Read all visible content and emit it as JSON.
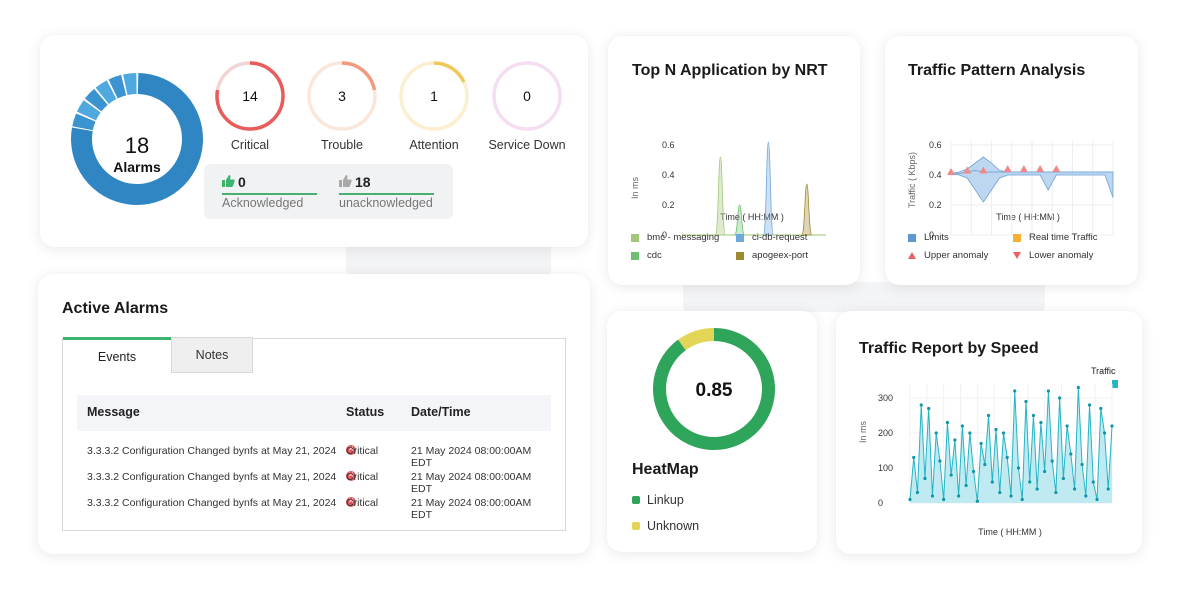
{
  "summary": {
    "total_count": "18",
    "total_label": "Alarms",
    "rings": [
      {
        "label": "Critical",
        "count": "14",
        "color": "#e85c5c",
        "track": "#f3d4d4"
      },
      {
        "label": "Trouble",
        "count": "3",
        "color": "#f29a7e",
        "track": "#fbe6dc"
      },
      {
        "label": "Attention",
        "count": "1",
        "color": "#f0c85a",
        "track": "#fbefcf"
      },
      {
        "label": "Service Down",
        "count": "0",
        "color": "#e9c6e6",
        "track": "#f3dff1"
      }
    ],
    "acknowledged": {
      "count": "0",
      "label": "Acknowledged"
    },
    "unacknowledged": {
      "count": "18",
      "label": "unacknowledged"
    },
    "colors": {
      "donut_dark": "#2f86c2",
      "donut_light": "#4fa9e0",
      "ack_bar": "#4caf72"
    }
  },
  "active_alarms": {
    "title": "Active Alarms",
    "tabs": [
      {
        "label": "Events",
        "active": true
      },
      {
        "label": "Notes",
        "active": false
      }
    ],
    "columns": [
      "Message",
      "Status",
      "Date/Time"
    ],
    "rows": [
      {
        "message": "3.3.3.2 Configuration Changed bynfs at  May 21, 2024",
        "status": "Critical",
        "datetime": "21 May 2024 08:00:00AM EDT"
      },
      {
        "message": "3.3.3.2 Configuration Changed bynfs at  May 21, 2024",
        "status": "Critical",
        "datetime": "21 May 2024 08:00:00AM EDT"
      },
      {
        "message": "3.3.3.2 Configuration Changed bynfs at  May 21, 2024",
        "status": "Critical",
        "datetime": "21 May 2024 08:00:00AM EDT"
      }
    ],
    "status_icon": "close-circle-icon"
  },
  "nrt": {
    "title": "Top N  Application by NRT",
    "legend": [
      {
        "name": "bmc - messaging",
        "color": "#a3c77a"
      },
      {
        "name": "ci-db-request",
        "color": "#6fa8dc"
      },
      {
        "name": "cdc",
        "color": "#6cc070"
      },
      {
        "name": "apogeex-port",
        "color": "#a08a2e"
      }
    ]
  },
  "traffic_pattern": {
    "title": "Traffic Pattern Analysis",
    "legend": [
      {
        "name": "Limits",
        "color": "#5b9bd5",
        "shape": "square"
      },
      {
        "name": "Real time Traffic",
        "color": "#f5b131",
        "shape": "square"
      },
      {
        "name": "Upper anomaly",
        "color": "#e86060",
        "shape": "triangle-up"
      },
      {
        "name": "Lower anomaly",
        "color": "#e86060",
        "shape": "triangle-down"
      }
    ]
  },
  "heatmap": {
    "value": "0.85",
    "title": "HeatMap",
    "legend": [
      {
        "name": "Linkup",
        "color": "#2ea55a"
      },
      {
        "name": "Unknown",
        "color": "#e3d656"
      }
    ],
    "linkup_fraction": 0.9
  },
  "speed": {
    "title": "Traffic Report by Speed",
    "legend": {
      "name": "Traffic",
      "color": "#26b5c4"
    }
  },
  "chart_data": [
    {
      "type": "area",
      "title": "Top N  Application by NRT",
      "xlabel": "Time ( HH:MM )",
      "ylabel": "In ms",
      "ylim": [
        0,
        0.6
      ],
      "yticks": [
        0,
        0.2,
        0.4,
        0.6
      ],
      "x": [
        0,
        1,
        2,
        3,
        4,
        5,
        6,
        7,
        8,
        9,
        10,
        11,
        12,
        13,
        14,
        15
      ],
      "series": [
        {
          "name": "bmc - messaging",
          "values": [
            0,
            0,
            0,
            0,
            0.52,
            0,
            0,
            0,
            0,
            0,
            0,
            0,
            0,
            0,
            0,
            0
          ]
        },
        {
          "name": "cdc",
          "values": [
            0,
            0,
            0,
            0,
            0,
            0,
            0.2,
            0,
            0,
            0,
            0,
            0,
            0,
            0,
            0,
            0
          ]
        },
        {
          "name": "ci-db-request",
          "values": [
            0,
            0,
            0,
            0,
            0,
            0,
            0,
            0,
            0,
            0.62,
            0,
            0,
            0,
            0,
            0,
            0
          ]
        },
        {
          "name": "apogeex-port",
          "values": [
            0,
            0,
            0,
            0,
            0,
            0,
            0,
            0,
            0,
            0,
            0,
            0,
            0,
            0.34,
            0,
            0
          ]
        }
      ]
    },
    {
      "type": "line",
      "title": "Traffic Pattern Analysis",
      "xlabel": "Time ( HH:MM )",
      "ylabel": "Traffic ( Kbps)",
      "ylim": [
        0,
        0.6
      ],
      "yticks": [
        0,
        0.2,
        0.4,
        0.6
      ],
      "x": [
        0,
        1,
        2,
        3,
        4,
        5,
        6,
        7,
        8,
        9,
        10,
        11,
        12,
        13,
        14,
        15,
        16,
        17,
        18,
        19,
        20
      ],
      "series": [
        {
          "name": "Limits",
          "upper": [
            0.41,
            0.42,
            0.44,
            0.48,
            0.52,
            0.48,
            0.43,
            0.42,
            0.42,
            0.42,
            0.42,
            0.42,
            0.42,
            0.42,
            0.42,
            0.42,
            0.42,
            0.42,
            0.42,
            0.42,
            0.42
          ],
          "lower": [
            0.41,
            0.4,
            0.38,
            0.3,
            0.22,
            0.3,
            0.38,
            0.4,
            0.4,
            0.4,
            0.4,
            0.4,
            0.3,
            0.4,
            0.4,
            0.4,
            0.4,
            0.4,
            0.4,
            0.4,
            0.25
          ]
        },
        {
          "name": "Real time Traffic",
          "values": [
            0.41,
            0.41,
            0.42,
            0.43,
            0.42,
            0.42,
            0.42,
            0.42,
            0.42,
            0.42,
            0.42,
            0.42,
            0.42,
            0.42,
            0.42,
            0.42,
            0.42,
            0.42,
            0.42,
            0.42,
            0.42
          ]
        },
        {
          "name": "Upper anomaly",
          "x": [
            0,
            2,
            4,
            7,
            9,
            11,
            13
          ],
          "values": [
            0.42,
            0.43,
            0.43,
            0.44,
            0.44,
            0.44,
            0.44
          ]
        },
        {
          "name": "Lower anomaly",
          "x": [],
          "values": []
        }
      ]
    },
    {
      "type": "pie",
      "title": "HeatMap",
      "categories": [
        "Linkup",
        "Unknown"
      ],
      "values": [
        0.9,
        0.1
      ]
    },
    {
      "type": "area",
      "title": "Traffic Report by Speed",
      "xlabel": "Time ( HH:MM )",
      "ylabel": "In ms",
      "ylim": [
        0,
        340
      ],
      "yticks": [
        0,
        100,
        200,
        300
      ],
      "series": [
        {
          "name": "Traffic",
          "values": [
            10,
            130,
            30,
            280,
            70,
            270,
            20,
            200,
            120,
            10,
            230,
            80,
            180,
            20,
            220,
            50,
            200,
            90,
            5,
            170,
            110,
            250,
            60,
            210,
            30,
            200,
            130,
            20,
            320,
            100,
            10,
            290,
            60,
            250,
            40,
            230,
            90,
            320,
            120,
            30,
            300,
            70,
            220,
            140,
            40,
            330,
            110,
            20,
            280,
            60,
            10,
            270,
            200,
            40,
            220
          ]
        }
      ]
    }
  ]
}
